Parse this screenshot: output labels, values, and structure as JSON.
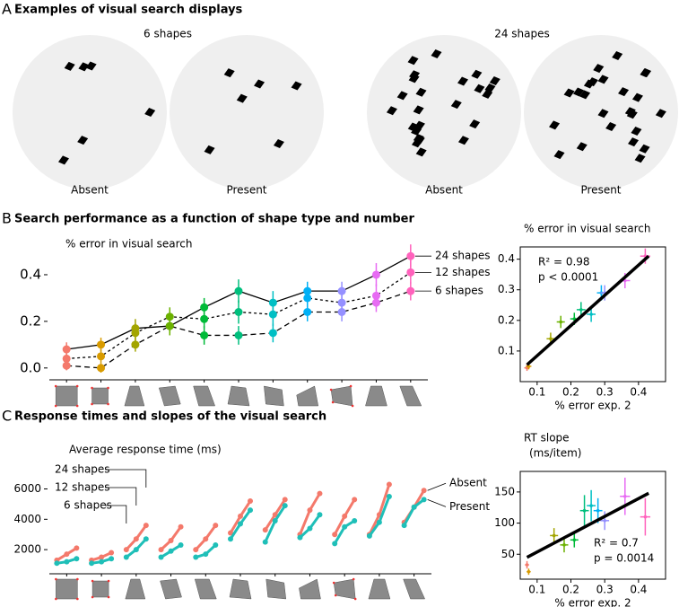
{
  "figure": {
    "panel_a": {
      "letter": "A",
      "title": "Examples of visual search displays",
      "groups": [
        {
          "label": "6 shapes",
          "displays": [
            "Absent",
            "Present"
          ]
        },
        {
          "label": "24 shapes",
          "displays": [
            "Absent",
            "Present"
          ]
        }
      ]
    },
    "panel_b": {
      "letter": "B",
      "title": "Search performance as a function of shape type and number"
    },
    "panel_c": {
      "letter": "C",
      "title": "Response times and slopes of the visual search"
    }
  },
  "chart_data": [
    {
      "type": "line",
      "y_label": "% error in visual search",
      "categories": [
        null,
        null,
        null,
        null,
        null,
        null,
        null,
        null,
        null,
        null,
        null
      ],
      "point_colors": [
        "#f4796b",
        "#d89b00",
        "#a3a500",
        "#6bb100",
        "#00ba38",
        "#00bf7d",
        "#00bfc4",
        "#00b0f6",
        "#9590ff",
        "#e76bf3",
        "#ff62bc"
      ],
      "ylim": [
        -0.02,
        0.5
      ],
      "yticks": [
        {
          "value": 0,
          "label": "0.0"
        },
        0.2,
        0.4
      ],
      "series": [
        {
          "name": "24 shapes",
          "style": "solid",
          "color": "#000000",
          "values": [
            0.08,
            0.1,
            0.17,
            0.18,
            0.26,
            0.33,
            0.28,
            0.33,
            0.33,
            0.4,
            0.48
          ],
          "errors": [
            0.03,
            0.03,
            0.04,
            0.04,
            0.04,
            0.05,
            0.05,
            0.04,
            0.04,
            0.05,
            0.05
          ]
        },
        {
          "name": "12 shapes",
          "style": "dotted",
          "color": "#000000",
          "values": [
            0.04,
            0.05,
            0.15,
            0.22,
            0.21,
            0.24,
            0.23,
            0.3,
            0.28,
            0.31,
            0.41
          ],
          "errors": [
            0.03,
            0.03,
            0.04,
            0.04,
            0.04,
            0.05,
            0.05,
            0.04,
            0.04,
            0.05,
            0.05
          ]
        },
        {
          "name": "6 shapes",
          "style": "dashed",
          "color": "#000000",
          "values": [
            0.01,
            0.0,
            0.1,
            0.18,
            0.14,
            0.14,
            0.15,
            0.24,
            0.24,
            0.28,
            0.33
          ],
          "errors": [
            0.02,
            0.02,
            0.03,
            0.03,
            0.04,
            0.04,
            0.04,
            0.04,
            0.04,
            0.04,
            0.04
          ]
        }
      ]
    },
    {
      "type": "scatter",
      "y_label": [
        "% error in visual search"
      ],
      "x_label": "% error exp. 2",
      "annotations": [
        "R² = 0.98",
        "p < 0.0001"
      ],
      "xlim": [
        0.05,
        0.48
      ],
      "xticks": [
        0.1,
        0.2,
        0.3,
        0.4
      ],
      "ylim": [
        0,
        0.44
      ],
      "yticks": [
        0.1,
        0.2,
        0.3,
        0.4
      ],
      "x": [
        0.07,
        0.075,
        0.14,
        0.17,
        0.21,
        0.23,
        0.26,
        0.29,
        0.3,
        0.36,
        0.42
      ],
      "y": [
        0.045,
        0.05,
        0.14,
        0.195,
        0.205,
        0.235,
        0.22,
        0.29,
        0.29,
        0.33,
        0.41
      ],
      "xerr": [
        0.008,
        0.008,
        0.012,
        0.012,
        0.012,
        0.013,
        0.013,
        0.013,
        0.013,
        0.015,
        0.015
      ],
      "yerr": [
        0.01,
        0.01,
        0.02,
        0.02,
        0.02,
        0.025,
        0.025,
        0.025,
        0.025,
        0.025,
        0.025
      ],
      "colors": [
        "#f4796b",
        "#d89b00",
        "#a3a500",
        "#6bb100",
        "#00ba38",
        "#00bf7d",
        "#00bfc4",
        "#00b0f6",
        "#9590ff",
        "#e76bf3",
        "#ff62bc"
      ],
      "fit": {
        "x": [
          0.07,
          0.43
        ],
        "y": [
          0.055,
          0.41
        ],
        "color": "#000000"
      }
    },
    {
      "type": "grouped-line",
      "y_label": "Average response time (ms)",
      "categories": [
        null,
        null,
        null,
        null,
        null,
        null,
        null,
        null,
        null,
        null,
        null
      ],
      "group_labels": [
        "6 shapes",
        "12 shapes",
        "24 shapes"
      ],
      "ylim": [
        1000,
        6800
      ],
      "yticks": [
        2000,
        4000,
        6000
      ],
      "series": [
        {
          "name": "Absent",
          "color": "#f4796b",
          "values": [
            [
              1300,
              1700,
              2100
            ],
            [
              1300,
              1500,
              1800
            ],
            [
              2000,
              2700,
              3600
            ],
            [
              2000,
              2600,
              3500
            ],
            [
              2000,
              2700,
              3600
            ],
            [
              3100,
              4200,
              5200
            ],
            [
              3300,
              4300,
              5300
            ],
            [
              3000,
              4600,
              5700
            ],
            [
              3000,
              4200,
              5300
            ],
            [
              3000,
              4300,
              6300
            ],
            [
              3800,
              4800,
              5900
            ]
          ]
        },
        {
          "name": "Present",
          "color": "#1fbfb8",
          "values": [
            [
              1100,
              1200,
              1400
            ],
            [
              1100,
              1200,
              1400
            ],
            [
              1500,
              2000,
              2700
            ],
            [
              1500,
              1900,
              2300
            ],
            [
              1500,
              1700,
              2300
            ],
            [
              2700,
              3700,
              4600
            ],
            [
              2500,
              3900,
              4900
            ],
            [
              2800,
              3400,
              4300
            ],
            [
              2400,
              3500,
              3900
            ],
            [
              2900,
              3800,
              5500
            ],
            [
              3600,
              4800,
              5300
            ]
          ]
        }
      ]
    },
    {
      "type": "scatter",
      "y_label": [
        "RT slope",
        "(ms/item)"
      ],
      "x_label": "% error exp. 2",
      "annotations": [
        "R² = 0.7",
        "p = 0.0014"
      ],
      "xlim": [
        0.05,
        0.48
      ],
      "xticks": [
        0.1,
        0.2,
        0.3,
        0.4
      ],
      "ylim": [
        10,
        183
      ],
      "yticks": [
        50,
        100,
        150
      ],
      "x": [
        0.07,
        0.075,
        0.15,
        0.18,
        0.21,
        0.24,
        0.26,
        0.28,
        0.3,
        0.36,
        0.42
      ],
      "y": [
        33,
        22,
        80,
        65,
        73,
        120,
        128,
        120,
        104,
        143,
        110
      ],
      "xerr": [
        0.006,
        0.006,
        0.012,
        0.012,
        0.012,
        0.013,
        0.013,
        0.013,
        0.013,
        0.015,
        0.015
      ],
      "yerr": [
        6,
        5,
        12,
        12,
        12,
        25,
        25,
        20,
        15,
        30,
        30
      ],
      "colors": [
        "#f4796b",
        "#d89b00",
        "#a3a500",
        "#6bb100",
        "#00ba38",
        "#00bf7d",
        "#00bfc4",
        "#00b0f6",
        "#9590ff",
        "#e76bf3",
        "#ff62bc"
      ],
      "fit": {
        "x": [
          0.07,
          0.43
        ],
        "y": [
          45,
          148
        ],
        "color": "#000000"
      }
    }
  ]
}
